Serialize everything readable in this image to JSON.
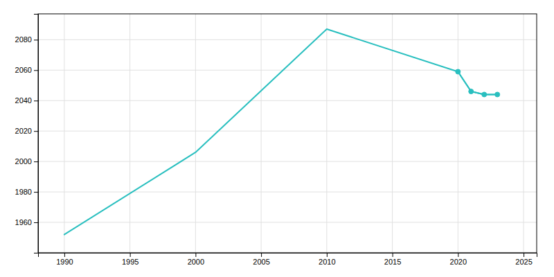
{
  "chart_data": {
    "type": "line",
    "x": [
      1990,
      2000,
      2010,
      2020,
      2021,
      2022,
      2023
    ],
    "series": [
      {
        "color": "#29BFBF",
        "values": [
          1952,
          2006,
          2087,
          2059,
          2046,
          2044,
          2044
        ]
      },
      {
        "color": "#29BFBF",
        "x": [
          2020,
          2021,
          2022,
          2023
        ],
        "values": [
          2059,
          2046,
          2044,
          2044
        ],
        "marker": "circle"
      }
    ],
    "xlim": [
      1988,
      2026
    ],
    "ylim": [
      1940,
      2097
    ],
    "xticks": [
      1990,
      1995,
      2000,
      2005,
      2010,
      2015,
      2020,
      2025
    ],
    "yticks": [
      1960,
      1980,
      2000,
      2020,
      2040,
      2060,
      2080
    ],
    "grid": true
  }
}
